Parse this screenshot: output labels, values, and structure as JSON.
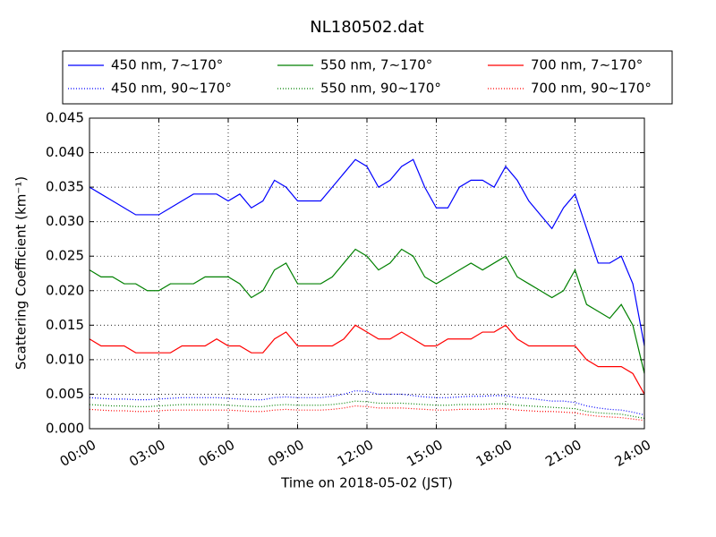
{
  "chart_data": {
    "type": "line",
    "title": "NL180502.dat",
    "x_label": "Time on 2018-05-02 (JST)",
    "y_label": "Scattering Coefficient (km⁻¹)",
    "x": [
      0,
      0.5,
      1,
      1.5,
      2,
      2.5,
      3,
      3.5,
      4,
      4.5,
      5,
      5.5,
      6,
      6.5,
      7,
      7.5,
      8,
      8.5,
      9,
      9.5,
      10,
      10.5,
      11,
      11.5,
      12,
      12.5,
      13,
      13.5,
      14,
      14.5,
      15,
      15.5,
      16,
      16.5,
      17,
      17.5,
      18,
      18.5,
      19,
      19.5,
      20,
      20.5,
      21,
      21.5,
      22,
      22.5,
      23,
      23.5,
      24
    ],
    "xlim": [
      0,
      24
    ],
    "xticks": [
      {
        "value": 0,
        "label": "00:00"
      },
      {
        "value": 3,
        "label": "03:00"
      },
      {
        "value": 6,
        "label": "06:00"
      },
      {
        "value": 9,
        "label": "09:00"
      },
      {
        "value": 12,
        "label": "12:00"
      },
      {
        "value": 15,
        "label": "15:00"
      },
      {
        "value": 18,
        "label": "18:00"
      },
      {
        "value": 21,
        "label": "21:00"
      },
      {
        "value": 24,
        "label": "24:00"
      }
    ],
    "ylim": [
      0,
      0.045
    ],
    "yticks": [
      {
        "value": 0,
        "label": "0.000"
      },
      {
        "value": 0.005,
        "label": "0.005"
      },
      {
        "value": 0.01,
        "label": "0.010"
      },
      {
        "value": 0.015,
        "label": "0.015"
      },
      {
        "value": 0.02,
        "label": "0.020"
      },
      {
        "value": 0.025,
        "label": "0.025"
      },
      {
        "value": 0.03,
        "label": "0.030"
      },
      {
        "value": 0.035,
        "label": "0.035"
      },
      {
        "value": 0.04,
        "label": "0.040"
      },
      {
        "value": 0.045,
        "label": "0.045"
      }
    ],
    "grid": true,
    "legend": "top",
    "series": [
      {
        "name": "450 nm, 7∼170°",
        "color": "#0000ff",
        "style": "solid",
        "values": [
          0.035,
          0.034,
          0.033,
          0.032,
          0.031,
          0.031,
          0.031,
          0.032,
          0.033,
          0.034,
          0.034,
          0.034,
          0.033,
          0.034,
          0.032,
          0.033,
          0.036,
          0.035,
          0.033,
          0.033,
          0.033,
          0.035,
          0.037,
          0.039,
          0.038,
          0.035,
          0.036,
          0.038,
          0.039,
          0.035,
          0.032,
          0.032,
          0.035,
          0.036,
          0.036,
          0.035,
          0.038,
          0.036,
          0.033,
          0.031,
          0.029,
          0.032,
          0.034,
          0.029,
          0.024,
          0.024,
          0.025,
          0.021,
          0.012
        ]
      },
      {
        "name": "550 nm, 7∼170°",
        "color": "#008000",
        "style": "solid",
        "values": [
          0.023,
          0.022,
          0.022,
          0.021,
          0.021,
          0.02,
          0.02,
          0.021,
          0.021,
          0.021,
          0.022,
          0.022,
          0.022,
          0.021,
          0.019,
          0.02,
          0.023,
          0.024,
          0.021,
          0.021,
          0.021,
          0.022,
          0.024,
          0.026,
          0.025,
          0.023,
          0.024,
          0.026,
          0.025,
          0.022,
          0.021,
          0.022,
          0.023,
          0.024,
          0.023,
          0.024,
          0.025,
          0.022,
          0.021,
          0.02,
          0.019,
          0.02,
          0.023,
          0.018,
          0.017,
          0.016,
          0.018,
          0.015,
          0.008
        ]
      },
      {
        "name": "700 nm, 7∼170°",
        "color": "#ff0000",
        "style": "solid",
        "values": [
          0.013,
          0.012,
          0.012,
          0.012,
          0.011,
          0.011,
          0.011,
          0.011,
          0.012,
          0.012,
          0.012,
          0.013,
          0.012,
          0.012,
          0.011,
          0.011,
          0.013,
          0.014,
          0.012,
          0.012,
          0.012,
          0.012,
          0.013,
          0.015,
          0.014,
          0.013,
          0.013,
          0.014,
          0.013,
          0.012,
          0.012,
          0.013,
          0.013,
          0.013,
          0.014,
          0.014,
          0.015,
          0.013,
          0.012,
          0.012,
          0.012,
          0.012,
          0.012,
          0.01,
          0.009,
          0.009,
          0.009,
          0.008,
          0.005
        ]
      },
      {
        "name": "450 nm, 90∼170°",
        "color": "#0000ff",
        "style": "dotted",
        "values": [
          0.0045,
          0.0044,
          0.0043,
          0.0043,
          0.0042,
          0.0042,
          0.0043,
          0.0044,
          0.0045,
          0.0045,
          0.0045,
          0.0045,
          0.0044,
          0.0043,
          0.0042,
          0.0042,
          0.0045,
          0.0046,
          0.0045,
          0.0045,
          0.0045,
          0.0047,
          0.005,
          0.0055,
          0.0054,
          0.005,
          0.005,
          0.005,
          0.0048,
          0.0046,
          0.0045,
          0.0045,
          0.0046,
          0.0047,
          0.0047,
          0.0048,
          0.0048,
          0.0045,
          0.0044,
          0.0042,
          0.004,
          0.004,
          0.0038,
          0.0033,
          0.003,
          0.0028,
          0.0027,
          0.0024,
          0.002
        ]
      },
      {
        "name": "550 nm, 90∼170°",
        "color": "#008000",
        "style": "dotted",
        "values": [
          0.0035,
          0.0034,
          0.0033,
          0.0033,
          0.0032,
          0.0032,
          0.0033,
          0.0034,
          0.0035,
          0.0035,
          0.0035,
          0.0035,
          0.0034,
          0.0033,
          0.0032,
          0.0032,
          0.0034,
          0.0035,
          0.0034,
          0.0034,
          0.0034,
          0.0035,
          0.0037,
          0.004,
          0.0039,
          0.0037,
          0.0037,
          0.0037,
          0.0036,
          0.0035,
          0.0034,
          0.0034,
          0.0035,
          0.0035,
          0.0035,
          0.0036,
          0.0036,
          0.0034,
          0.0033,
          0.0032,
          0.0031,
          0.003,
          0.0029,
          0.0025,
          0.0023,
          0.0022,
          0.0021,
          0.0018,
          0.0015
        ]
      },
      {
        "name": "700 nm, 90∼170°",
        "color": "#ff0000",
        "style": "dotted",
        "values": [
          0.0028,
          0.0027,
          0.0026,
          0.0026,
          0.0025,
          0.0025,
          0.0026,
          0.0027,
          0.0027,
          0.0027,
          0.0027,
          0.0027,
          0.0027,
          0.0026,
          0.0025,
          0.0025,
          0.0027,
          0.0028,
          0.0027,
          0.0027,
          0.0027,
          0.0028,
          0.003,
          0.0033,
          0.0032,
          0.003,
          0.003,
          0.003,
          0.0029,
          0.0028,
          0.0027,
          0.0027,
          0.0028,
          0.0028,
          0.0028,
          0.0029,
          0.0029,
          0.0027,
          0.0026,
          0.0025,
          0.0025,
          0.0024,
          0.0023,
          0.002,
          0.0018,
          0.0017,
          0.0016,
          0.0014,
          0.0012
        ]
      }
    ]
  }
}
